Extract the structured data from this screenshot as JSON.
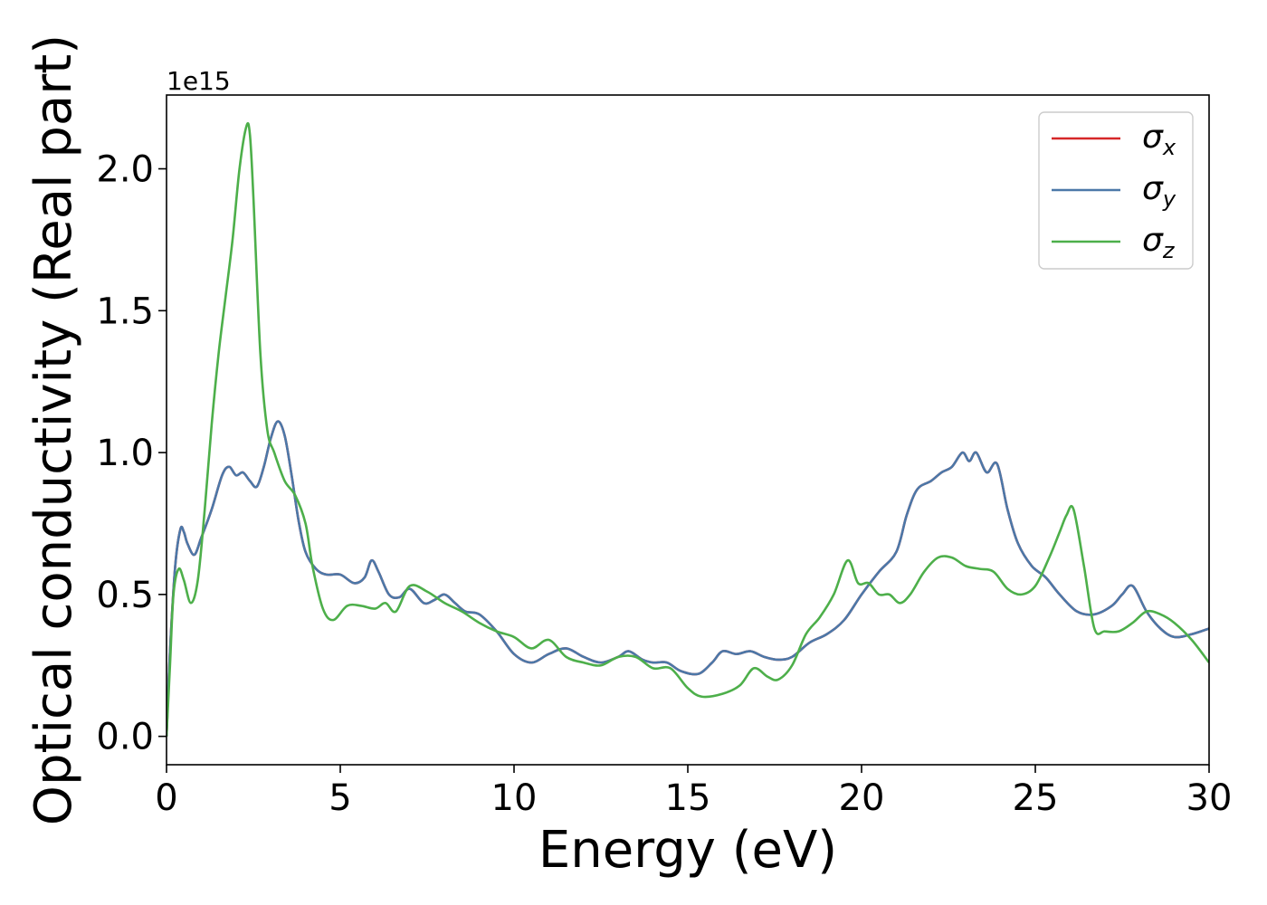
{
  "chart_data": {
    "type": "line",
    "title": "",
    "xlabel": "Energy (eV)",
    "ylabel": "Optical conductivity (Real part)",
    "y_offset_text": "1e15",
    "xlim": [
      0,
      30
    ],
    "ylim": [
      -0.1,
      2.26
    ],
    "x_ticks": [
      0,
      5,
      10,
      15,
      20,
      25,
      30
    ],
    "x_tick_labels": [
      "0",
      "5",
      "10",
      "15",
      "20",
      "25",
      "30"
    ],
    "y_ticks": [
      0.0,
      0.5,
      1.0,
      1.5,
      2.0
    ],
    "y_tick_labels": [
      "0.0",
      "0.5",
      "1.0",
      "1.5",
      "2.0"
    ],
    "grid": false,
    "legend_position": "top-right",
    "series": [
      {
        "name": "σ",
        "subscript": "x",
        "color": "#d62728",
        "x": [
          0,
          0.1,
          0.25,
          0.4,
          0.5,
          0.6,
          0.8,
          1.0,
          1.3,
          1.6,
          1.8,
          2.0,
          2.2,
          2.4,
          2.6,
          2.8,
          3.0,
          3.2,
          3.4,
          3.6,
          3.8,
          4.0,
          4.3,
          4.6,
          5.0,
          5.4,
          5.7,
          5.9,
          6.1,
          6.4,
          6.7,
          7.0,
          7.4,
          7.7,
          8.0,
          8.3,
          8.6,
          9.0,
          9.5,
          10.0,
          10.5,
          11.0,
          11.5,
          12.0,
          12.5,
          13.0,
          13.3,
          13.7,
          14.0,
          14.4,
          14.8,
          15.3,
          15.7,
          16.0,
          16.4,
          16.8,
          17.2,
          17.6,
          18.0,
          18.5,
          19.0,
          19.5,
          20.0,
          20.5,
          21.0,
          21.3,
          21.6,
          22.0,
          22.3,
          22.6,
          22.9,
          23.1,
          23.3,
          23.6,
          23.9,
          24.2,
          24.5,
          24.9,
          25.3,
          25.7,
          26.2,
          26.7,
          27.2,
          27.5,
          27.8,
          28.2,
          28.6,
          29.0,
          29.5,
          30.0
        ],
        "values": [
          0.0,
          0.3,
          0.6,
          0.73,
          0.72,
          0.68,
          0.64,
          0.7,
          0.8,
          0.92,
          0.95,
          0.92,
          0.93,
          0.9,
          0.88,
          0.95,
          1.05,
          1.11,
          1.06,
          0.92,
          0.76,
          0.65,
          0.59,
          0.57,
          0.57,
          0.54,
          0.56,
          0.62,
          0.58,
          0.5,
          0.49,
          0.52,
          0.47,
          0.48,
          0.5,
          0.47,
          0.44,
          0.43,
          0.37,
          0.29,
          0.26,
          0.29,
          0.31,
          0.28,
          0.26,
          0.28,
          0.3,
          0.27,
          0.26,
          0.26,
          0.23,
          0.22,
          0.26,
          0.3,
          0.29,
          0.3,
          0.28,
          0.27,
          0.28,
          0.33,
          0.36,
          0.41,
          0.5,
          0.58,
          0.65,
          0.78,
          0.87,
          0.9,
          0.93,
          0.95,
          1.0,
          0.97,
          1.0,
          0.93,
          0.96,
          0.8,
          0.68,
          0.6,
          0.56,
          0.5,
          0.44,
          0.43,
          0.46,
          0.5,
          0.53,
          0.44,
          0.38,
          0.35,
          0.36,
          0.38
        ]
      },
      {
        "name": "σ",
        "subscript": "y",
        "color": "#4c78a8",
        "x": [
          0,
          0.1,
          0.25,
          0.4,
          0.5,
          0.6,
          0.8,
          1.0,
          1.3,
          1.6,
          1.8,
          2.0,
          2.2,
          2.4,
          2.6,
          2.8,
          3.0,
          3.2,
          3.4,
          3.6,
          3.8,
          4.0,
          4.3,
          4.6,
          5.0,
          5.4,
          5.7,
          5.9,
          6.1,
          6.4,
          6.7,
          7.0,
          7.4,
          7.7,
          8.0,
          8.3,
          8.6,
          9.0,
          9.5,
          10.0,
          10.5,
          11.0,
          11.5,
          12.0,
          12.5,
          13.0,
          13.3,
          13.7,
          14.0,
          14.4,
          14.8,
          15.3,
          15.7,
          16.0,
          16.4,
          16.8,
          17.2,
          17.6,
          18.0,
          18.5,
          19.0,
          19.5,
          20.0,
          20.5,
          21.0,
          21.3,
          21.6,
          22.0,
          22.3,
          22.6,
          22.9,
          23.1,
          23.3,
          23.6,
          23.9,
          24.2,
          24.5,
          24.9,
          25.3,
          25.7,
          26.2,
          26.7,
          27.2,
          27.5,
          27.8,
          28.2,
          28.6,
          29.0,
          29.5,
          30.0
        ],
        "values": [
          0.0,
          0.3,
          0.6,
          0.73,
          0.72,
          0.68,
          0.64,
          0.7,
          0.8,
          0.92,
          0.95,
          0.92,
          0.93,
          0.9,
          0.88,
          0.95,
          1.05,
          1.11,
          1.06,
          0.92,
          0.76,
          0.65,
          0.59,
          0.57,
          0.57,
          0.54,
          0.56,
          0.62,
          0.58,
          0.5,
          0.49,
          0.52,
          0.47,
          0.48,
          0.5,
          0.47,
          0.44,
          0.43,
          0.37,
          0.29,
          0.26,
          0.29,
          0.31,
          0.28,
          0.26,
          0.28,
          0.3,
          0.27,
          0.26,
          0.26,
          0.23,
          0.22,
          0.26,
          0.3,
          0.29,
          0.3,
          0.28,
          0.27,
          0.28,
          0.33,
          0.36,
          0.41,
          0.5,
          0.58,
          0.65,
          0.78,
          0.87,
          0.9,
          0.93,
          0.95,
          1.0,
          0.97,
          1.0,
          0.93,
          0.96,
          0.8,
          0.68,
          0.6,
          0.56,
          0.5,
          0.44,
          0.43,
          0.46,
          0.5,
          0.53,
          0.44,
          0.38,
          0.35,
          0.36,
          0.38
        ]
      },
      {
        "name": "σ",
        "subscript": "z",
        "color": "#4daf4a",
        "x": [
          0,
          0.1,
          0.2,
          0.35,
          0.5,
          0.7,
          0.9,
          1.1,
          1.3,
          1.5,
          1.7,
          1.9,
          2.1,
          2.3,
          2.4,
          2.5,
          2.7,
          2.9,
          3.1,
          3.4,
          3.7,
          4.0,
          4.2,
          4.5,
          4.8,
          5.2,
          5.6,
          6.0,
          6.3,
          6.6,
          7.0,
          7.5,
          8.0,
          8.5,
          9.0,
          9.5,
          10.0,
          10.5,
          11.0,
          11.5,
          12.0,
          12.5,
          13.0,
          13.5,
          14.0,
          14.5,
          15.0,
          15.4,
          16.0,
          16.5,
          16.9,
          17.3,
          17.6,
          18.0,
          18.4,
          18.8,
          19.2,
          19.6,
          19.9,
          20.2,
          20.5,
          20.8,
          21.1,
          21.4,
          21.8,
          22.2,
          22.6,
          23.0,
          23.4,
          23.8,
          24.2,
          24.6,
          25.0,
          25.4,
          25.7,
          25.9,
          26.1,
          26.4,
          26.7,
          27.0,
          27.4,
          27.8,
          28.2,
          28.6,
          29.0,
          29.5,
          30.0
        ],
        "values": [
          0.0,
          0.25,
          0.5,
          0.59,
          0.55,
          0.47,
          0.55,
          0.8,
          1.1,
          1.35,
          1.55,
          1.75,
          2.0,
          2.15,
          2.12,
          1.9,
          1.35,
          1.08,
          1.0,
          0.9,
          0.85,
          0.75,
          0.6,
          0.45,
          0.41,
          0.46,
          0.46,
          0.45,
          0.47,
          0.44,
          0.53,
          0.51,
          0.47,
          0.44,
          0.4,
          0.37,
          0.35,
          0.31,
          0.34,
          0.28,
          0.26,
          0.25,
          0.28,
          0.28,
          0.24,
          0.24,
          0.17,
          0.14,
          0.15,
          0.18,
          0.24,
          0.21,
          0.2,
          0.25,
          0.36,
          0.42,
          0.5,
          0.62,
          0.54,
          0.54,
          0.5,
          0.5,
          0.47,
          0.5,
          0.58,
          0.63,
          0.63,
          0.6,
          0.59,
          0.58,
          0.52,
          0.5,
          0.53,
          0.63,
          0.72,
          0.78,
          0.8,
          0.6,
          0.38,
          0.37,
          0.37,
          0.4,
          0.44,
          0.43,
          0.4,
          0.34,
          0.26
        ]
      }
    ]
  }
}
